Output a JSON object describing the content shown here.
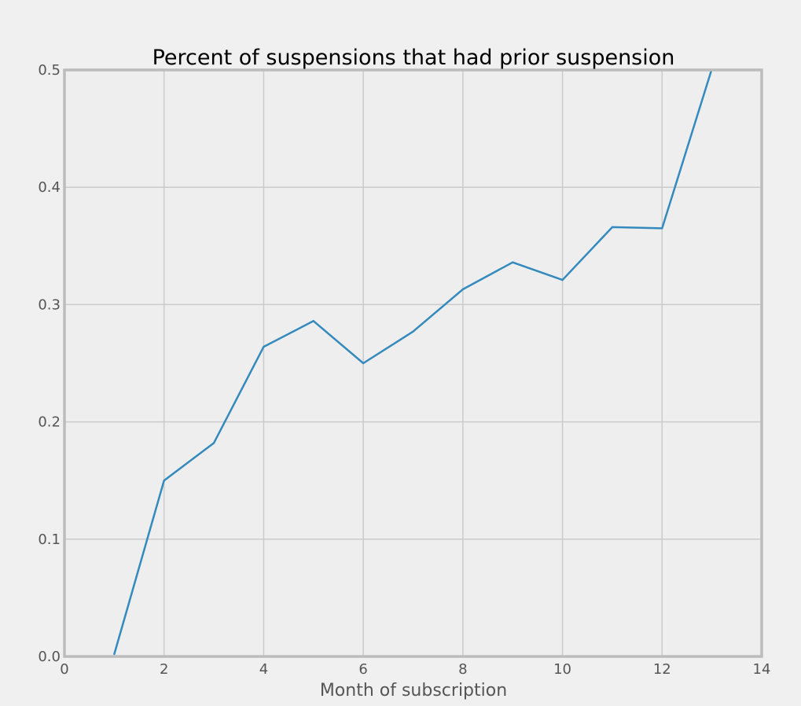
{
  "chart_data": {
    "type": "line",
    "title": "Percent of suspensions that had prior suspension",
    "xlabel": "Month of subscription",
    "ylabel": "",
    "xlim": [
      0,
      14
    ],
    "ylim": [
      0,
      0.5
    ],
    "xticks": [
      0,
      2,
      4,
      6,
      8,
      10,
      12,
      14
    ],
    "yticks": [
      0.0,
      0.1,
      0.2,
      0.3,
      0.4,
      0.5
    ],
    "xtick_labels": [
      "0",
      "2",
      "4",
      "6",
      "8",
      "10",
      "12",
      "14"
    ],
    "ytick_labels": [
      "0.0",
      "0.1",
      "0.2",
      "0.3",
      "0.4",
      "0.5"
    ],
    "grid": true,
    "x": [
      1,
      2,
      3,
      4,
      5,
      6,
      7,
      8,
      9,
      10,
      11,
      12,
      13
    ],
    "series": [
      {
        "values": [
          0.002,
          0.15,
          0.182,
          0.264,
          0.286,
          0.25,
          0.277,
          0.313,
          0.336,
          0.321,
          0.366,
          0.365,
          0.501
        ],
        "color": "#348abd"
      }
    ],
    "colors": {
      "figure_background": "#f0f0f0",
      "plot_background": "#eeeeee",
      "grid": "#cbcbcb",
      "frame": "#bcbcbc"
    }
  }
}
